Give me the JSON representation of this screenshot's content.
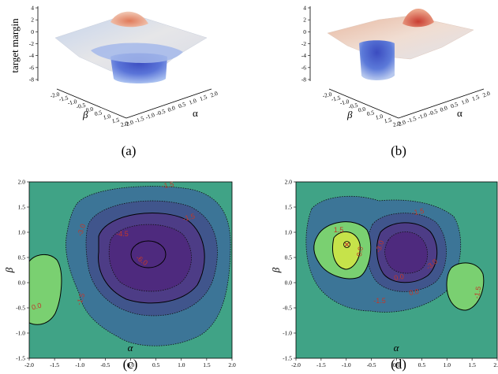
{
  "chart_data": [
    {
      "type": "surface",
      "caption": "(a)",
      "zlabel": "target margin",
      "xlabel": "α",
      "ylabel": "β",
      "zlim": [
        -8,
        4
      ],
      "z_ticks": [
        "4",
        "2",
        "0",
        "-2",
        "-4",
        "-6",
        "-8"
      ],
      "alpha_ticks": [
        "-2.0",
        "-1.5",
        "-1.0",
        "-0.5",
        "0.0",
        "0.5",
        "1.0",
        "1.5",
        "2.0"
      ],
      "beta_ticks": [
        "-2.0",
        "-1.5",
        "-1.0",
        "-0.5",
        "0.0",
        "0.5",
        "1.0",
        "1.5",
        "2.0"
      ],
      "description_values": {
        "plateau_z": -0.5,
        "min_z": -7.5,
        "max_z": 2.0
      }
    },
    {
      "type": "surface",
      "caption": "(b)",
      "xlabel": "α",
      "ylabel": "β",
      "zlim": [
        -8,
        4
      ],
      "z_ticks": [
        "4",
        "2",
        "0",
        "-2",
        "-4",
        "-6",
        "-8"
      ],
      "alpha_ticks": [
        "-2.0",
        "-1.5",
        "-1.0",
        "-0.5",
        "0.0",
        "0.5",
        "1.0",
        "1.5",
        "2.0"
      ],
      "beta_ticks": [
        "-2.0",
        "-1.5",
        "-1.0",
        "-0.5",
        "0.0",
        "0.5",
        "1.0",
        "1.5",
        "2.0"
      ],
      "description_values": {
        "plateau_z": -0.5,
        "min_z": -7.0,
        "max_z": 3.5
      }
    },
    {
      "type": "contour",
      "caption": "(c)",
      "xlabel": "α",
      "ylabel": "β",
      "xlim": [
        -2,
        2
      ],
      "ylim": [
        -1.5,
        2
      ],
      "x_ticks": [
        "-2.0",
        "-1.5",
        "-1.0",
        "-0.5",
        "0.0",
        "0.5",
        "1.0",
        "1.5",
        "2.0"
      ],
      "y_ticks": [
        "-1.5",
        "-1.0",
        "-0.5",
        "0.0",
        "0.5",
        "1.0",
        "1.5",
        "2.0"
      ],
      "contour_labels": [
        "-1.5",
        "-1.5",
        "-3.0",
        "-4.5",
        "-1.5",
        "0.0",
        "-6.0"
      ],
      "levels": [
        0.0,
        -1.5,
        -3.0,
        -4.5,
        -6.0
      ]
    },
    {
      "type": "contour",
      "caption": "(d)",
      "xlabel": "α",
      "ylabel": "β",
      "xlim": [
        -2,
        2
      ],
      "ylim": [
        -1.5,
        2
      ],
      "x_ticks": [
        "-2.0",
        "-1.5",
        "-1.0",
        "-0.5",
        "0.0",
        "0.5",
        "1.0",
        "1.5",
        "2.0"
      ],
      "y_ticks": [
        "-1.5",
        "-1.0",
        "-0.5",
        "0.0",
        "0.5",
        "1.0",
        "1.5",
        "2.0"
      ],
      "contour_labels": [
        "-1.5",
        "1.5",
        "0.0",
        "-3.0",
        "-3.0",
        "0.0",
        "0.0",
        "-1.5",
        "-1.5"
      ],
      "levels": [
        1.5,
        0.0,
        -1.5,
        -3.0,
        -4.5
      ]
    }
  ],
  "colors": {
    "background_teal": "#40a386",
    "level_green": "#7ad071",
    "level_yellow": "#c6e34a",
    "level_slate": "#3c7597",
    "level_indigo": "#40558c",
    "level_purple": "#4d3c86",
    "level_deep": "#4e2a7e",
    "surface_red": "#d9654d",
    "surface_blue": "#3b4cc0",
    "contour_label": "#c0392b"
  }
}
